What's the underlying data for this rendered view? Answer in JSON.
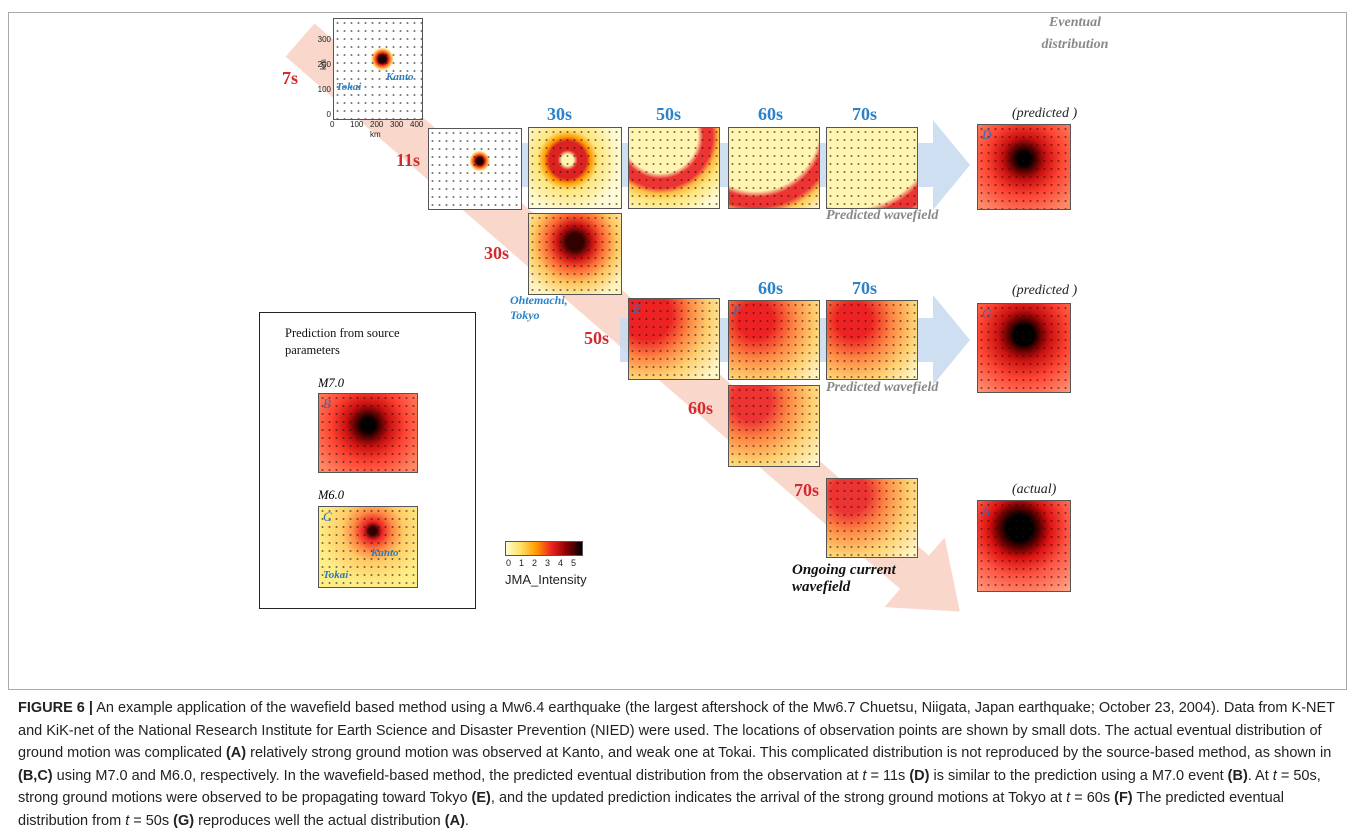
{
  "figure": {
    "source_times": [
      "7s",
      "11s",
      "30s",
      "50s",
      "60s",
      "70s"
    ],
    "eventual_title": "Eventual distribution",
    "row1": {
      "times": [
        "30s",
        "50s",
        "60s",
        "70s"
      ],
      "note": "Predicted wavefield",
      "result": "(predicted )",
      "panel": "D"
    },
    "row2": {
      "times": [
        "60s",
        "70s"
      ],
      "note": "Predicted wavefield",
      "result": "(predicted )",
      "panel": "G"
    },
    "observed_panels": [
      "E",
      "F"
    ],
    "station_label": "Ohtemachi, Tokyo",
    "ongoing_label": "Ongoing current wavefield",
    "actual": {
      "label": "(actual)",
      "panel": "A"
    },
    "inset_map": {
      "tokai": "Tokai",
      "kanto": "Kanto",
      "axis_unit": "km",
      "xticks": [
        0,
        100,
        200,
        300,
        400
      ],
      "yticks": [
        0,
        100,
        200,
        300
      ]
    },
    "source_box": {
      "title": "Prediction from source parameters",
      "panels": [
        {
          "magnitude": "M7.0",
          "panel": "B"
        },
        {
          "magnitude": "M6.0",
          "panel": "C",
          "kanto": "Kanto",
          "tokai": "Tokai"
        }
      ]
    },
    "colorbar": {
      "ticks": [
        0,
        1,
        2,
        3,
        4,
        5
      ],
      "label": "JMA_Intensity"
    }
  },
  "caption": {
    "label": "FIGURE 6 |",
    "segments": [
      {
        "text": " An example application of the wavefield based method using a Mw6.4 earthquake (the largest aftershock of the Mw6.7 Chuetsu, Niigata, Japan earthquake; October 23, 2004). Data from K-NET and KiK-net of the National Research Institute for Earth Science and Disaster Prevention (NIED) were used. The locations of observation points are shown by small dots. The actual eventual distribution of ground motion was complicated "
      },
      {
        "bold": "(A)"
      },
      {
        "text": " relatively strong ground motion was observed at Kanto, and weak one at Tokai. This complicated distribution is not reproduced by the source-based method, as shown in "
      },
      {
        "bold": "(B,C)"
      },
      {
        "text": " using M7.0 and M6.0, respectively. In the wavefield-based method, the predicted eventual distribution from the observation at "
      },
      {
        "italic": "t"
      },
      {
        "text": " = 11s "
      },
      {
        "bold": "(D)"
      },
      {
        "text": " is similar to the prediction using a M7.0 event "
      },
      {
        "bold": "(B)"
      },
      {
        "text": ". At "
      },
      {
        "italic": "t"
      },
      {
        "text": " = 50s, strong ground motions were observed to be propagating toward Tokyo "
      },
      {
        "bold": "(E)"
      },
      {
        "text": ", and the updated prediction indicates the arrival of the strong ground motions at Tokyo at "
      },
      {
        "italic": "t"
      },
      {
        "text": " = 60s "
      },
      {
        "bold": "(F)"
      },
      {
        "text": " The predicted eventual distribution from "
      },
      {
        "italic": "t"
      },
      {
        "text": " = 50s "
      },
      {
        "bold": "(G)"
      },
      {
        "text": " reproduces well the actual distribution "
      },
      {
        "bold": "(A)"
      },
      {
        "text": "."
      }
    ]
  }
}
